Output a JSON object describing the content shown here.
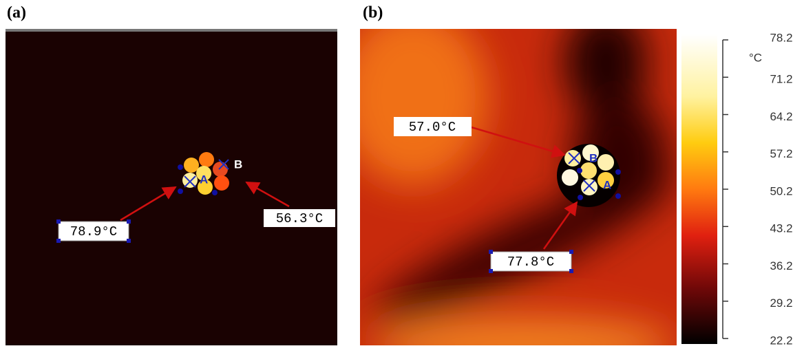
{
  "panels": [
    {
      "label": "(a)",
      "points": [
        "A",
        "B"
      ],
      "annotations": [
        "78.9°C",
        "56.3°C"
      ]
    },
    {
      "label": "(b)",
      "points": [
        "A",
        "B"
      ],
      "annotations": [
        "57.0°C",
        "77.8°C"
      ]
    }
  ],
  "colorbar": {
    "unit": "°C",
    "ticks": [
      78.2,
      71.2,
      64.2,
      57.2,
      50.2,
      43.2,
      36.2,
      29.2,
      22.2
    ]
  }
}
